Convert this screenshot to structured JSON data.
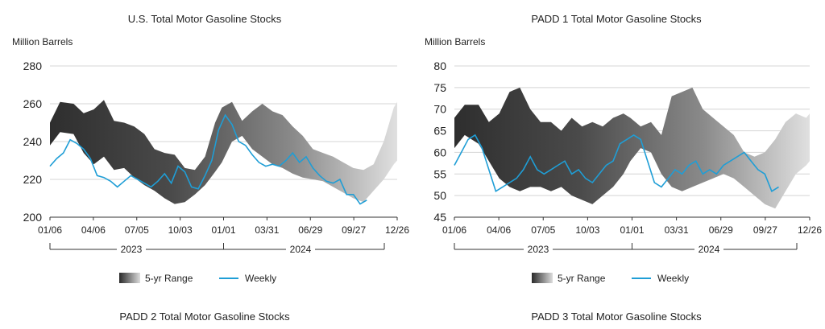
{
  "chart_data": [
    {
      "type": "area",
      "title": "U.S. Total Motor Gasoline Stocks",
      "ylabel": "Million Barrels",
      "ylim": [
        200,
        280
      ],
      "yticks": [
        200,
        220,
        240,
        260,
        280
      ],
      "x_tick_labels": [
        "01/06",
        "04/06",
        "07/05",
        "10/03",
        "01/01",
        "03/31",
        "06/29",
        "09/27",
        "12/26"
      ],
      "years": [
        "2023",
        "2024"
      ],
      "grid": true,
      "legend": {
        "placement": "bottom",
        "entries": [
          "5-yr Range",
          "Weekly"
        ]
      },
      "series": [
        {
          "name": "5-yr Range",
          "kind": "band",
          "x": [
            1,
            4,
            8,
            11,
            14,
            17,
            20,
            23,
            26,
            29,
            32,
            35,
            38,
            41,
            44,
            47,
            50,
            52,
            55,
            58,
            61,
            64,
            67,
            70,
            73,
            76,
            79,
            82,
            85,
            88,
            91,
            94,
            97,
            100,
            103,
            104
          ],
          "low": [
            238,
            245,
            244,
            234,
            228,
            232,
            225,
            226,
            221,
            217,
            214,
            210,
            207,
            208,
            212,
            217,
            224,
            229,
            240,
            243,
            236,
            232,
            228,
            226,
            223,
            221,
            220,
            219,
            216,
            213,
            210,
            208,
            214,
            220,
            228,
            230
          ],
          "high": [
            250,
            261,
            260,
            255,
            257,
            262,
            251,
            250,
            248,
            244,
            236,
            234,
            233,
            226,
            225,
            232,
            250,
            258,
            261,
            251,
            256,
            260,
            256,
            254,
            248,
            243,
            236,
            234,
            232,
            229,
            226,
            225,
            228,
            240,
            258,
            261
          ]
        },
        {
          "name": "Weekly",
          "kind": "line",
          "x": [
            1,
            3,
            5,
            7,
            9,
            11,
            13,
            15,
            17,
            19,
            21,
            23,
            25,
            27,
            29,
            31,
            33,
            35,
            37,
            39,
            41,
            43,
            45,
            47,
            49,
            51,
            53,
            55,
            57,
            59,
            61,
            63,
            65,
            67,
            69,
            71,
            73,
            75,
            77,
            79,
            81,
            83,
            85,
            87,
            89,
            91,
            93,
            95
          ],
          "y": [
            227,
            231,
            234,
            241,
            239,
            236,
            231,
            222,
            221,
            219,
            216,
            219,
            222,
            220,
            218,
            216,
            219,
            223,
            218,
            227,
            224,
            216,
            215,
            222,
            230,
            246,
            254,
            249,
            240,
            238,
            233,
            229,
            227,
            228,
            227,
            230,
            234,
            229,
            232,
            226,
            222,
            219,
            218,
            220,
            212,
            212,
            207,
            209
          ]
        }
      ]
    },
    {
      "type": "area",
      "title": "PADD 1 Total Motor Gasoline Stocks",
      "ylabel": "Million Barrels",
      "ylim": [
        45,
        80
      ],
      "yticks": [
        45,
        50,
        55,
        60,
        65,
        70,
        75,
        80
      ],
      "x_tick_labels": [
        "01/06",
        "04/06",
        "07/05",
        "10/03",
        "01/01",
        "03/31",
        "06/29",
        "09/27",
        "12/26"
      ],
      "years": [
        "2023",
        "2024"
      ],
      "grid": true,
      "legend": {
        "placement": "bottom",
        "entries": [
          "5-yr Range",
          "Weekly"
        ]
      },
      "series": [
        {
          "name": "5-yr Range",
          "kind": "band",
          "x": [
            1,
            4,
            8,
            11,
            14,
            17,
            20,
            23,
            26,
            29,
            32,
            35,
            38,
            41,
            44,
            47,
            50,
            52,
            55,
            58,
            61,
            64,
            67,
            70,
            73,
            76,
            79,
            82,
            85,
            88,
            91,
            94,
            97,
            100,
            103,
            104
          ],
          "low": [
            61,
            64,
            62,
            58,
            54,
            52,
            51,
            52,
            52,
            51,
            52,
            50,
            49,
            48,
            50,
            52,
            55,
            58,
            61,
            60,
            55,
            52,
            51,
            52,
            53,
            54,
            55,
            54,
            52,
            50,
            48,
            47,
            51,
            55,
            57,
            58
          ],
          "high": [
            68,
            71,
            71,
            67,
            69,
            74,
            75,
            70,
            67,
            67,
            65,
            68,
            66,
            67,
            66,
            68,
            69,
            68,
            66,
            67,
            64,
            73,
            74,
            75,
            70,
            68,
            66,
            64,
            60,
            59,
            60,
            63,
            67,
            69,
            68,
            69
          ]
        },
        {
          "name": "Weekly",
          "kind": "line",
          "x": [
            1,
            3,
            5,
            7,
            9,
            11,
            13,
            15,
            17,
            19,
            21,
            23,
            25,
            27,
            29,
            31,
            33,
            35,
            37,
            39,
            41,
            43,
            45,
            47,
            49,
            51,
            53,
            55,
            57,
            59,
            61,
            63,
            65,
            67,
            69,
            71,
            73,
            75,
            77,
            79,
            81,
            83,
            85,
            87,
            89,
            91,
            93,
            95
          ],
          "y": [
            57,
            60,
            63,
            64,
            61,
            56,
            51,
            52,
            53,
            54,
            56,
            59,
            56,
            55,
            56,
            57,
            58,
            55,
            56,
            54,
            53,
            55,
            57,
            58,
            62,
            63,
            64,
            63,
            58,
            53,
            52,
            54,
            56,
            55,
            57,
            58,
            55,
            56,
            55,
            57,
            58,
            59,
            60,
            58,
            56,
            55,
            51,
            52
          ]
        }
      ]
    },
    {
      "type": "area",
      "title": "PADD 2 Total Motor Gasoline Stocks"
    },
    {
      "type": "area",
      "title": "PADD 3 Total Motor Gasoline Stocks"
    }
  ]
}
